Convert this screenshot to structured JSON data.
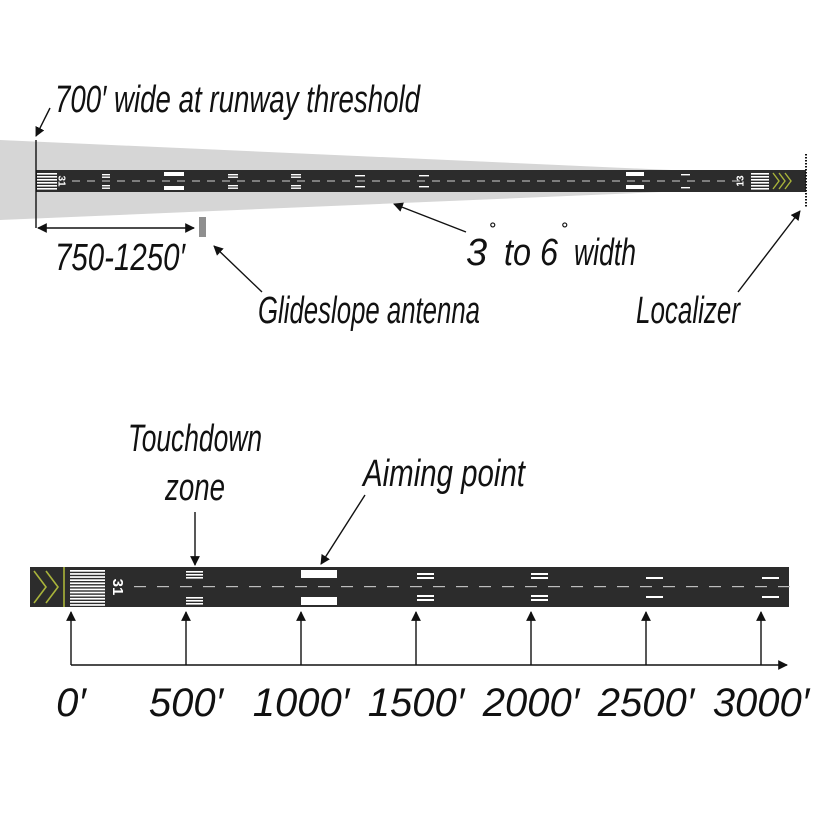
{
  "colors": {
    "runway": "#2c2c2c",
    "beam": "#d6d6d6",
    "marking": "#ffffff",
    "chevron": "#a9b43a",
    "antenna": "#8f8f8f",
    "ink": "#111111"
  },
  "top": {
    "threshold_width_label": "700′ wide at runway threshold",
    "distance_label": "750-1250′",
    "glideslope_label": "Glideslope antenna",
    "beam_width_label": {
      "a": "3",
      "b": "to 6",
      "c": "width",
      "degree": "˚"
    },
    "localizer_label": "Localizer",
    "runway_number_left": "31",
    "runway_number_right": "13"
  },
  "bottom": {
    "touchdown_label_line1": "Touchdown",
    "touchdown_label_line2": "zone",
    "aiming_label": "Aiming point",
    "runway_number": "31",
    "distance_ticks": [
      "0′",
      "500′",
      "1000′",
      "1500′",
      "2000′",
      "2500′",
      "3000′"
    ]
  }
}
